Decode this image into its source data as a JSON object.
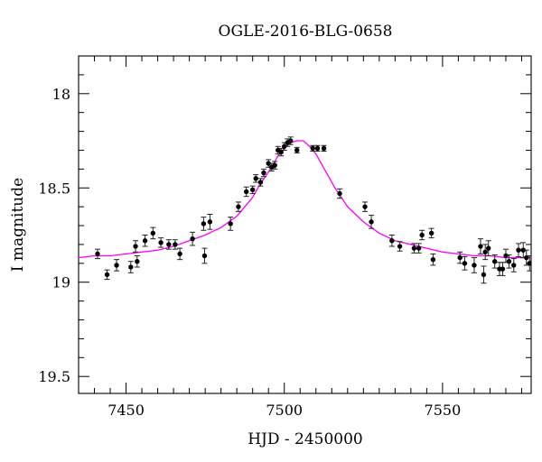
{
  "chart_data": {
    "type": "scatter",
    "title": "OGLE-2016-BLG-0658",
    "xlabel": "HJD - 2450000",
    "ylabel": "I magnitude",
    "xlim": [
      7435,
      7578
    ],
    "ylim": [
      19.59,
      17.8
    ],
    "y_inverted": true,
    "xticks": [
      7450,
      7500,
      7550
    ],
    "yticks": [
      18,
      18.5,
      19,
      19.5
    ],
    "xtick_labels": [
      "7450",
      "7500",
      "7550"
    ],
    "ytick_labels": [
      "18",
      "18.5",
      "19",
      "19.5"
    ],
    "grid": false,
    "series": [
      {
        "kind": "points_with_errorbars",
        "color": "#000000",
        "x": [
          7441.0,
          7444.0,
          7447.0,
          7451.5,
          7453.0,
          7453.5,
          7456.0,
          7458.5,
          7461.0,
          7463.5,
          7465.5,
          7467.0,
          7471.0,
          7474.5,
          7474.8,
          7476.5,
          7483.0,
          7485.5,
          7488.0,
          7490.0,
          7491.0,
          7492.5,
          7493.5,
          7495.0,
          7496.0,
          7497.0,
          7498.0,
          7499.0,
          7500.0,
          7501.0,
          7502.0,
          7504.0,
          7509.0,
          7510.5,
          7512.5,
          7517.5,
          7525.5,
          7527.5,
          7534.0,
          7536.5,
          7541.0,
          7542.5,
          7543.5,
          7546.5,
          7547.0,
          7555.5,
          7557.0,
          7560.0,
          7562.0,
          7563.0,
          7563.5,
          7564.5,
          7566.5,
          7568.0,
          7569.0,
          7570.0,
          7571.0,
          7572.5,
          7574.0,
          7575.5,
          7576.5,
          7577.5
        ],
        "y": [
          18.85,
          18.96,
          18.91,
          18.92,
          18.81,
          18.89,
          18.78,
          18.74,
          18.79,
          18.8,
          18.8,
          18.85,
          18.77,
          18.69,
          18.86,
          18.68,
          18.69,
          18.6,
          18.52,
          18.51,
          18.45,
          18.47,
          18.42,
          18.37,
          18.39,
          18.38,
          18.3,
          18.31,
          18.28,
          18.26,
          18.25,
          18.3,
          18.29,
          18.29,
          18.29,
          18.53,
          18.6,
          18.68,
          18.78,
          18.81,
          18.82,
          18.82,
          18.75,
          18.74,
          18.88,
          18.87,
          18.9,
          18.91,
          18.81,
          18.96,
          18.84,
          18.82,
          18.89,
          18.93,
          18.93,
          18.86,
          18.89,
          18.91,
          18.83,
          18.83,
          18.87,
          18.9
        ],
        "yerr": [
          0.025,
          0.025,
          0.03,
          0.03,
          0.03,
          0.03,
          0.03,
          0.03,
          0.025,
          0.025,
          0.025,
          0.03,
          0.035,
          0.035,
          0.04,
          0.04,
          0.035,
          0.025,
          0.025,
          0.02,
          0.02,
          0.02,
          0.02,
          0.02,
          0.02,
          0.02,
          0.02,
          0.02,
          0.02,
          0.02,
          0.02,
          0.015,
          0.015,
          0.015,
          0.015,
          0.025,
          0.025,
          0.035,
          0.03,
          0.025,
          0.025,
          0.025,
          0.025,
          0.025,
          0.03,
          0.03,
          0.035,
          0.04,
          0.04,
          0.045,
          0.04,
          0.04,
          0.035,
          0.035,
          0.035,
          0.035,
          0.035,
          0.035,
          0.035,
          0.04,
          0.04,
          0.04
        ]
      },
      {
        "kind": "model_curve",
        "color": "#ff00ff",
        "x": [
          7435,
          7440,
          7445,
          7450,
          7455,
          7460,
          7465,
          7470,
          7475,
          7480,
          7485,
          7490,
          7492,
          7494,
          7496,
          7498,
          7500,
          7502,
          7504,
          7505,
          7506,
          7508,
          7510,
          7512,
          7514,
          7516,
          7518,
          7520,
          7525,
          7530,
          7535,
          7540,
          7545,
          7550,
          7555,
          7560,
          7565,
          7570,
          7575,
          7578
        ],
        "y": [
          18.87,
          18.86,
          18.86,
          18.85,
          18.84,
          18.83,
          18.81,
          18.78,
          18.75,
          18.71,
          18.65,
          18.55,
          18.49,
          18.44,
          18.39,
          18.33,
          18.29,
          18.26,
          18.25,
          18.25,
          18.25,
          18.28,
          18.32,
          18.38,
          18.44,
          18.5,
          18.55,
          18.6,
          18.68,
          18.74,
          18.78,
          18.8,
          18.82,
          18.84,
          18.85,
          18.86,
          18.86,
          18.87,
          18.87,
          18.87
        ]
      }
    ]
  }
}
